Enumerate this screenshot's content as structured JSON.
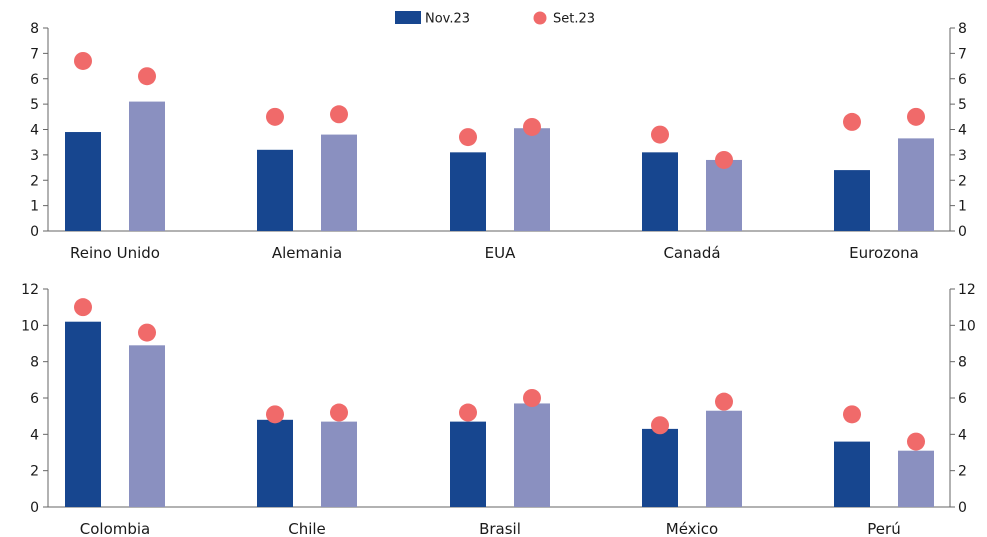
{
  "legend": {
    "items": [
      {
        "label": "Nov.23",
        "marker": "bar",
        "color": "#17468f"
      },
      {
        "label": "Set.23",
        "marker": "dot",
        "color": "#f06a6a"
      }
    ],
    "placement": "top-center"
  },
  "colors": {
    "bar_dark": "#17468f",
    "bar_light": "#8a90c0",
    "dot": "#f06a6a",
    "axis": "#666666"
  },
  "chart_data": [
    {
      "type": "bar",
      "categories": [
        "Reino Unido",
        "Alemania",
        "EUA",
        "Canadá",
        "Eurozona"
      ],
      "ylim": [
        0,
        8
      ],
      "yticks": [
        0,
        1,
        2,
        3,
        4,
        5,
        6,
        7,
        8
      ],
      "grid": false,
      "secondary_axis_mirrored": true,
      "series": [
        {
          "name": "Nov.23",
          "marker": "bar",
          "values": [
            3.9,
            3.2,
            3.1,
            3.1,
            2.4
          ]
        },
        {
          "marker": "bar",
          "values": [
            5.1,
            3.8,
            4.05,
            2.8,
            3.65
          ]
        },
        {
          "name": "Set.23",
          "marker": "dot",
          "values": [
            [
              6.7,
              6.1
            ],
            [
              4.5,
              4.6
            ],
            [
              3.7,
              4.1
            ],
            [
              3.8,
              2.8
            ],
            [
              4.3,
              4.5
            ]
          ]
        }
      ]
    },
    {
      "type": "bar",
      "categories": [
        "Colombia",
        "Chile",
        "Brasil",
        "México",
        "Perú"
      ],
      "ylim": [
        0,
        12
      ],
      "yticks": [
        0,
        2,
        4,
        6,
        8,
        10,
        12
      ],
      "grid": false,
      "secondary_axis_mirrored": true,
      "series": [
        {
          "name": "Nov.23",
          "marker": "bar",
          "values": [
            10.2,
            4.8,
            4.7,
            4.3,
            3.6
          ]
        },
        {
          "marker": "bar",
          "values": [
            8.9,
            4.7,
            5.7,
            5.3,
            3.1
          ]
        },
        {
          "name": "Set.23",
          "marker": "dot",
          "values": [
            [
              11.0,
              9.6
            ],
            [
              5.1,
              5.2
            ],
            [
              5.2,
              6.0
            ],
            [
              4.5,
              5.8
            ],
            [
              5.1,
              3.6
            ]
          ]
        }
      ]
    }
  ]
}
